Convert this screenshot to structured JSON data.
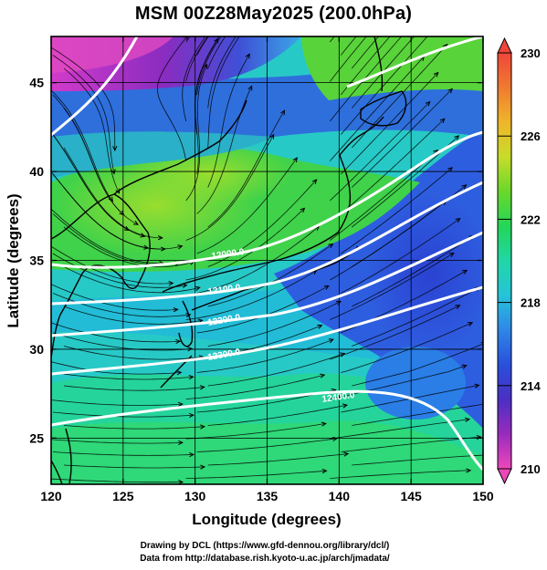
{
  "title": "MSM 00Z28May2025 (200.0hPa)",
  "x_axis": {
    "label": "Longitude (degrees)",
    "range": [
      120,
      150
    ],
    "ticks": [
      "120",
      "125",
      "130",
      "135",
      "140",
      "145",
      "150"
    ]
  },
  "y_axis": {
    "label": "Latitude  (degrees)",
    "range": [
      22.4,
      47.6
    ],
    "ticks": [
      "25",
      "30",
      "35",
      "40",
      "45"
    ]
  },
  "colorbar": {
    "min": 210,
    "max": 230,
    "ticks": [
      "210",
      "214",
      "218",
      "222",
      "226",
      "230"
    ],
    "colors": [
      "#ec48ba",
      "#9a2bbd",
      "#4a2fc4",
      "#2a4fdc",
      "#2f86e8",
      "#25c4d8",
      "#22d6a7",
      "#23d658",
      "#6ad82a",
      "#c8dc2a",
      "#f0b52a",
      "#f07a30",
      "#f0463a"
    ]
  },
  "contours": [
    {
      "label": "12000.0"
    },
    {
      "label": "12100.0"
    },
    {
      "label": "12200.0"
    },
    {
      "label": "12300.0"
    },
    {
      "label": "12400.0"
    }
  ],
  "credits": {
    "line1": "Drawing by DCL (https://www.gfd-dennou.org/library/dcl/)",
    "line2": "Data from http://database.rish.kyoto-u.ac.jp/arch/jmadata/"
  }
}
